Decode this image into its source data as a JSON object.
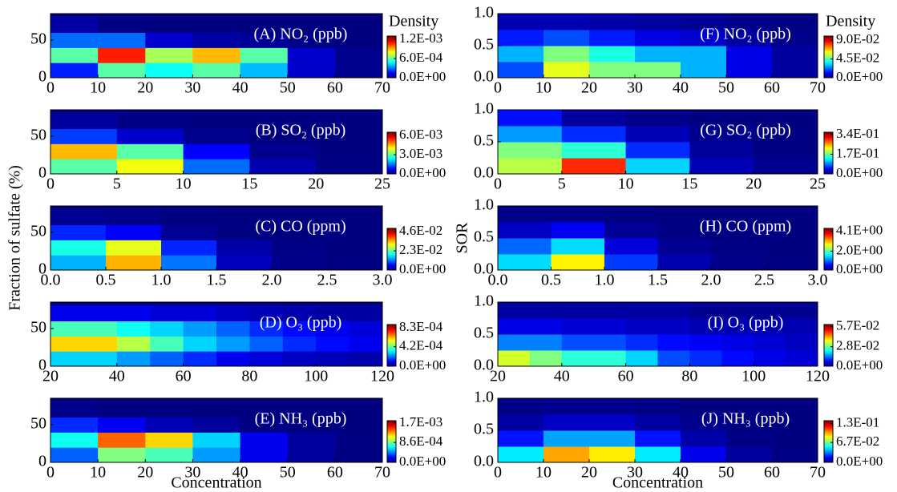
{
  "chart_data": [
    {
      "type": "heatmap",
      "title": "(A) NO₂ (ppb)",
      "colorbar_title": "Density",
      "xlim": [
        0,
        70
      ],
      "xticks": [
        0,
        10,
        20,
        30,
        40,
        50,
        60,
        70
      ],
      "ylim": [
        0,
        85
      ],
      "yticks": [
        0,
        50
      ],
      "xbins": [
        0,
        10,
        20,
        30,
        40,
        50,
        60,
        70
      ],
      "ybins": [
        0,
        20,
        40,
        60,
        80
      ],
      "z": [
        [
          0.0002,
          0.0006,
          0.0005,
          0.0006,
          0.0004,
          0.0001,
          2e-05
        ],
        [
          0.0006,
          0.0011,
          0.0007,
          0.0009,
          0.0006,
          0.0001,
          2e-05
        ],
        [
          0.0003,
          0.0003,
          0.0001,
          5e-05,
          3e-05,
          1e-05,
          0
        ],
        [
          5e-05,
          1e-05,
          0,
          0,
          0,
          0,
          0
        ]
      ],
      "clim": [
        0,
        0.0013
      ],
      "cticks": [
        {
          "value": 0,
          "label": "0.0E+00"
        },
        {
          "value": 0.0006,
          "label": "6.0E-04"
        },
        {
          "value": 0.0012,
          "label": "1.2E-03"
        }
      ]
    },
    {
      "type": "heatmap",
      "title": "(B) SO₂ (ppb)",
      "xlim": [
        0,
        25
      ],
      "xticks": [
        0,
        5,
        10,
        15,
        20,
        25
      ],
      "ylim": [
        0,
        85
      ],
      "yticks": [
        0,
        50
      ],
      "xbins": [
        0,
        5,
        10,
        15,
        20,
        25
      ],
      "ybins": [
        0,
        20,
        40,
        60,
        80
      ],
      "z": [
        [
          0.003,
          0.004,
          0.0015,
          0.0003,
          5e-05
        ],
        [
          0.0045,
          0.003,
          0.0008,
          0.0001,
          2e-05
        ],
        [
          0.0012,
          0.0005,
          0.0001,
          1e-05,
          0
        ],
        [
          0.0002,
          5e-05,
          0,
          0,
          0
        ]
      ],
      "clim": [
        0,
        0.0065
      ],
      "cticks": [
        {
          "value": 0,
          "label": "0.0E+00"
        },
        {
          "value": 0.003,
          "label": "3.0E-03"
        },
        {
          "value": 0.006,
          "label": "6.0E-03"
        }
      ]
    },
    {
      "type": "heatmap",
      "title": "(C) CO (ppm)",
      "ylabel": "Fraction of sulfate (%)",
      "xlim": [
        0,
        3
      ],
      "xticks": [
        {
          "value": 0,
          "label": "0.0"
        },
        {
          "value": 0.5,
          "label": "0.5"
        },
        {
          "value": 1,
          "label": "1.0"
        },
        {
          "value": 1.5,
          "label": "1.5"
        },
        {
          "value": 2,
          "label": "2.0"
        },
        {
          "value": 2.5,
          "label": "2.5"
        },
        {
          "value": 3,
          "label": "3.0"
        }
      ],
      "ylim": [
        0,
        85
      ],
      "yticks": [
        0,
        50
      ],
      "xbins": [
        0,
        0.5,
        1,
        1.5,
        2,
        2.5,
        3
      ],
      "ybins": [
        0,
        20,
        40,
        60,
        80
      ],
      "z": [
        [
          0.015,
          0.035,
          0.012,
          0.003,
          0.0005,
          0.0001
        ],
        [
          0.02,
          0.03,
          0.008,
          0.002,
          0.0003,
          5e-05
        ],
        [
          0.008,
          0.006,
          0.001,
          0.0002,
          0,
          0
        ],
        [
          0.001,
          0.0005,
          0.0001,
          0,
          0,
          0
        ]
      ],
      "clim": [
        0,
        0.05
      ],
      "cticks": [
        {
          "value": 0,
          "label": "0.0E+00"
        },
        {
          "value": 0.023,
          "label": "2.3E-02"
        },
        {
          "value": 0.046,
          "label": "4.6E-02"
        }
      ]
    },
    {
      "type": "heatmap",
      "title": "(D) O₃ (ppb)",
      "xlim": [
        20,
        120
      ],
      "xticks": [
        20,
        40,
        60,
        80,
        100,
        120
      ],
      "ylim": [
        0,
        85
      ],
      "yticks": [
        0,
        50
      ],
      "xbins": [
        20,
        30,
        40,
        50,
        60,
        70,
        80,
        90,
        100,
        110,
        120
      ],
      "ybins": [
        0,
        20,
        40,
        60,
        80
      ],
      "z": [
        [
          0.0003,
          0.0003,
          0.00025,
          0.0002,
          0.00015,
          0.0001,
          8e-05,
          6e-05,
          5e-05,
          4e-05
        ],
        [
          0.0006,
          0.0006,
          0.0005,
          0.0004,
          0.0003,
          0.00025,
          0.0002,
          0.00015,
          0.00012,
          0.0001
        ],
        [
          0.0004,
          0.0004,
          0.00035,
          0.0003,
          0.00025,
          0.0002,
          0.00015,
          0.00012,
          0.0001,
          8e-05
        ],
        [
          0.0001,
          0.0001,
          0.0001,
          8e-05,
          8e-05,
          6e-05,
          5e-05,
          4e-05,
          3e-05,
          3e-05
        ]
      ],
      "clim": [
        0,
        0.0009
      ],
      "cticks": [
        {
          "value": 0,
          "label": "0.0E+00"
        },
        {
          "value": 0.00042,
          "label": "4.2E-04"
        },
        {
          "value": 0.00083,
          "label": "8.3E-04"
        }
      ]
    },
    {
      "type": "heatmap",
      "title": "(E) NH₃ (ppb)",
      "xlabel": "Concentration",
      "xlim": [
        0,
        70
      ],
      "xticks": [
        0,
        10,
        20,
        30,
        40,
        50,
        60,
        70
      ],
      "ylim": [
        0,
        85
      ],
      "yticks": [
        0,
        50
      ],
      "xbins": [
        0,
        10,
        20,
        30,
        40,
        50,
        60,
        70
      ],
      "ybins": [
        0,
        20,
        40,
        60,
        80
      ],
      "z": [
        [
          0.0004,
          0.0009,
          0.0008,
          0.0005,
          0.0002,
          5e-05,
          1e-05
        ],
        [
          0.0007,
          0.0014,
          0.0012,
          0.0006,
          0.0002,
          5e-05,
          1e-05
        ],
        [
          0.0003,
          0.0002,
          0.0001,
          5e-05,
          1e-05,
          0,
          0
        ],
        [
          2e-05,
          0,
          0,
          0,
          0,
          0,
          0
        ]
      ],
      "clim": [
        0,
        0.0018
      ],
      "cticks": [
        {
          "value": 0,
          "label": "0.0E+00"
        },
        {
          "value": 0.00086,
          "label": "8.6E-04"
        },
        {
          "value": 0.0017,
          "label": "1.7E-03"
        }
      ]
    },
    {
      "type": "heatmap",
      "title": "(F) NO₂ (ppb)",
      "colorbar_title": "Density",
      "xlim": [
        0,
        70
      ],
      "xticks": [
        0,
        10,
        20,
        30,
        40,
        50,
        60,
        70
      ],
      "ylim": [
        0,
        1
      ],
      "yticks": [
        {
          "value": 0,
          "label": "0.0"
        },
        {
          "value": 0.5,
          "label": "0.5"
        },
        {
          "value": 1,
          "label": "1.0"
        }
      ],
      "xbins": [
        0,
        10,
        20,
        30,
        40,
        50,
        60,
        70
      ],
      "ybins": [
        0,
        0.25,
        0.5,
        0.75,
        1
      ],
      "z": [
        [
          0.02,
          0.06,
          0.05,
          0.05,
          0.03,
          0.01,
          0.003
        ],
        [
          0.03,
          0.05,
          0.04,
          0.03,
          0.03,
          0.01,
          0.003
        ],
        [
          0.015,
          0.02,
          0.015,
          0.01,
          0.008,
          0.003,
          0.001
        ],
        [
          0.005,
          0.005,
          0.004,
          0.003,
          0.002,
          0.001,
          0.0005
        ]
      ],
      "clim": [
        0,
        0.1
      ],
      "cticks": [
        {
          "value": 0,
          "label": "0.0E+00"
        },
        {
          "value": 0.045,
          "label": "4.5E-02"
        },
        {
          "value": 0.09,
          "label": "9.0E-02"
        }
      ]
    },
    {
      "type": "heatmap",
      "title": "(G) SO₂ (ppb)",
      "xlim": [
        0,
        25
      ],
      "xticks": [
        0,
        5,
        10,
        15,
        20,
        25
      ],
      "ylim": [
        0,
        1
      ],
      "yticks": [
        {
          "value": 0,
          "label": "0.0"
        },
        {
          "value": 0.5,
          "label": "0.5"
        },
        {
          "value": 1,
          "label": "1.0"
        }
      ],
      "xbins": [
        0,
        5,
        10,
        15,
        20,
        25
      ],
      "ybins": [
        0,
        0.25,
        0.5,
        0.75,
        1
      ],
      "z": [
        [
          0.2,
          0.3,
          0.12,
          0.02,
          0.005
        ],
        [
          0.18,
          0.15,
          0.06,
          0.01,
          0.002
        ],
        [
          0.1,
          0.06,
          0.02,
          0.005,
          0.001
        ],
        [
          0.05,
          0.01,
          0.003,
          0,
          0
        ]
      ],
      "clim": [
        0,
        0.36
      ],
      "cticks": [
        {
          "value": 0,
          "label": "0.0E+00"
        },
        {
          "value": 0.17,
          "label": "1.7E-01"
        },
        {
          "value": 0.34,
          "label": "3.4E-01"
        }
      ]
    },
    {
      "type": "heatmap",
      "title": "(H) CO (ppm)",
      "ylabel": "SOR",
      "xlim": [
        0,
        3
      ],
      "xticks": [
        {
          "value": 0,
          "label": "0.0"
        },
        {
          "value": 0.5,
          "label": "0.5"
        },
        {
          "value": 1,
          "label": "1.0"
        },
        {
          "value": 1.5,
          "label": "1.5"
        },
        {
          "value": 2,
          "label": "2.0"
        },
        {
          "value": 2.5,
          "label": "2.5"
        },
        {
          "value": 3,
          "label": "3.0"
        }
      ],
      "ylim": [
        0,
        1
      ],
      "yticks": [
        {
          "value": 0,
          "label": "0.0"
        },
        {
          "value": 0.5,
          "label": "0.5"
        },
        {
          "value": 1,
          "label": "1.0"
        }
      ],
      "xbins": [
        0,
        0.5,
        1,
        1.5,
        2,
        2.5,
        3
      ],
      "ybins": [
        0,
        0.25,
        0.5,
        0.75,
        1
      ],
      "z": [
        [
          1.5,
          2.8,
          0.8,
          0.2,
          0.05,
          0.01
        ],
        [
          1,
          1.5,
          0.4,
          0.08,
          0.01,
          0
        ],
        [
          0.3,
          0.5,
          0.1,
          0.02,
          0,
          0
        ],
        [
          0.05,
          0.05,
          0.01,
          0,
          0,
          0
        ]
      ],
      "clim": [
        0,
        4.4
      ],
      "cticks": [
        {
          "value": 0,
          "label": "0.0E+00"
        },
        {
          "value": 2,
          "label": "2.0E+00"
        },
        {
          "value": 4.1,
          "label": "4.1E+00"
        }
      ]
    },
    {
      "type": "heatmap",
      "title": "(I) O₃ (ppb)",
      "xlim": [
        20,
        120
      ],
      "xticks": [
        20,
        40,
        60,
        80,
        100,
        120
      ],
      "ylim": [
        0,
        1
      ],
      "yticks": [
        {
          "value": 0,
          "label": "0.0"
        },
        {
          "value": 0.5,
          "label": "0.5"
        },
        {
          "value": 1,
          "label": "1.0"
        }
      ],
      "xbins": [
        20,
        30,
        40,
        50,
        60,
        70,
        80,
        90,
        100,
        110,
        120
      ],
      "ybins": [
        0,
        0.25,
        0.5,
        0.75,
        1
      ],
      "z": [
        [
          0.035,
          0.03,
          0.025,
          0.025,
          0.02,
          0.012,
          0.01,
          0.008,
          0.006,
          0.005
        ],
        [
          0.015,
          0.015,
          0.012,
          0.012,
          0.01,
          0.008,
          0.007,
          0.006,
          0.005,
          0.004
        ],
        [
          0.006,
          0.006,
          0.005,
          0.005,
          0.004,
          0.004,
          0.003,
          0.003,
          0.003,
          0.003
        ],
        [
          0.002,
          0.002,
          0.002,
          0.002,
          0.002,
          0.002,
          0.001,
          0.001,
          0.001,
          0.001
        ]
      ],
      "clim": [
        0,
        0.06
      ],
      "cticks": [
        {
          "value": 0,
          "label": "0.0E+00"
        },
        {
          "value": 0.028,
          "label": "2.8E-02"
        },
        {
          "value": 0.057,
          "label": "5.7E-02"
        }
      ]
    },
    {
      "type": "heatmap",
      "title": "(J) NH₃ (ppb)",
      "xlabel": "Concentration",
      "xlim": [
        0,
        70
      ],
      "xticks": [
        0,
        10,
        20,
        30,
        40,
        50,
        60,
        70
      ],
      "ylim": [
        0,
        1
      ],
      "yticks": [
        {
          "value": 0,
          "label": "0.0"
        },
        {
          "value": 0.5,
          "label": "0.5"
        },
        {
          "value": 1,
          "label": "1.0"
        }
      ],
      "xbins": [
        0,
        10,
        20,
        30,
        40,
        50,
        60,
        70
      ],
      "ybins": [
        0,
        0.25,
        0.5,
        0.75,
        1
      ],
      "z": [
        [
          0.05,
          0.1,
          0.09,
          0.05,
          0.015,
          0.004,
          0.001
        ],
        [
          0.02,
          0.04,
          0.04,
          0.02,
          0.006,
          0.001,
          0
        ],
        [
          0.005,
          0.01,
          0.01,
          0.005,
          0.002,
          0,
          0
        ],
        [
          0.001,
          0.002,
          0.002,
          0.001,
          0,
          0,
          0
        ]
      ],
      "clim": [
        0,
        0.14
      ],
      "cticks": [
        {
          "value": 0,
          "label": "0.0E+00"
        },
        {
          "value": 0.067,
          "label": "6.7E-02"
        },
        {
          "value": 0.13,
          "label": "1.3E-01"
        }
      ]
    }
  ]
}
